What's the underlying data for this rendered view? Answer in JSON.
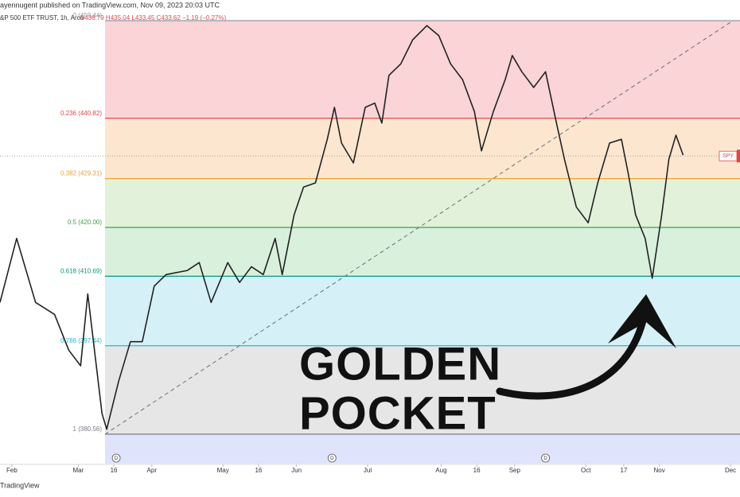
{
  "chart_data": {
    "type": "line",
    "header": "ayennugent published on TradingView.com, Nov 09, 2023 20:03 UTC",
    "symbol": "&P 500 ETF TRUST, 1h, Arca",
    "ohlc": "O436.79 H435.04 L433.45 C433.62 −1.19 (−0.27%)",
    "annotation": [
      "GOLDEN",
      "POCKET"
    ],
    "footer": "TradingView",
    "price_label": "SPY",
    "last_price": 433.62,
    "xlim": [
      27,
      339
    ],
    "ylim": [
      374.95,
      463.38
    ],
    "xticks": [
      {
        "value": 32,
        "label": "Feb"
      },
      {
        "value": 60,
        "label": "Mar"
      },
      {
        "value": 75,
        "label": "16"
      },
      {
        "value": 91,
        "label": "Apr"
      },
      {
        "value": 121,
        "label": "May"
      },
      {
        "value": 136,
        "label": "16"
      },
      {
        "value": 152,
        "label": "Jun"
      },
      {
        "value": 182,
        "label": "Jul"
      },
      {
        "value": 213,
        "label": "Aug"
      },
      {
        "value": 228,
        "label": "16"
      },
      {
        "value": 244,
        "label": "Sep"
      },
      {
        "value": 274,
        "label": "Oct"
      },
      {
        "value": 290,
        "label": "17"
      },
      {
        "value": 305,
        "label": "Nov"
      },
      {
        "value": 335,
        "label": "Dec"
      }
    ],
    "event_markers": [
      {
        "x": 76,
        "label": "D"
      },
      {
        "x": 167,
        "label": "D"
      },
      {
        "x": 257,
        "label": "D"
      }
    ],
    "fib_levels": [
      {
        "label": "0 (459.44)",
        "price": 459.44,
        "color": "#9598a1",
        "fill": "#fad4d7"
      },
      {
        "label": "0.236 (440.82)",
        "price": 440.82,
        "color": "#e0474c",
        "fill": "#fde6cf"
      },
      {
        "label": "0.382 (429.31)",
        "price": 429.31,
        "color": "#f0a030",
        "fill": "#e2f1da"
      },
      {
        "label": "0.5 (420.00)",
        "price": 420.0,
        "color": "#43a047",
        "fill": "#d9f0dd"
      },
      {
        "label": "0.618 (410.69)",
        "price": 410.69,
        "color": "#089981",
        "fill": "#d5f0f7"
      },
      {
        "label": "0.786 (397.44)",
        "price": 397.44,
        "color": "#26b8d0",
        "fill": "#e6e6e6"
      },
      {
        "label": "1 (380.56)",
        "price": 380.56,
        "color": "#787b86",
        "fill": "#dfe3fb"
      }
    ],
    "trendline": {
      "x": [
        71.3,
        336
      ],
      "values": [
        380.56,
        459.44
      ]
    },
    "series": [
      {
        "name": "SPY",
        "color": "#222222",
        "x": [
          27,
          34,
          42,
          50,
          56,
          61,
          64,
          70,
          72,
          77,
          82,
          87,
          92,
          97,
          106,
          111,
          116,
          123,
          128,
          133,
          138,
          143,
          146,
          151,
          155,
          160,
          165,
          168,
          171,
          176,
          181,
          185,
          188,
          191,
          196,
          201,
          207,
          212,
          217,
          222,
          227,
          230,
          235,
          240,
          243,
          247,
          252,
          257,
          262,
          265,
          270,
          275,
          279,
          284,
          289,
          292,
          295,
          299,
          302,
          306,
          309,
          312,
          315
        ],
        "values": [
          405.7,
          417.9,
          405.7,
          403.4,
          396.6,
          393.6,
          407.3,
          384.5,
          381.5,
          390.6,
          398.2,
          398.2,
          408.8,
          411.0,
          411.8,
          413.3,
          405.7,
          413.3,
          409.5,
          412.5,
          411.0,
          417.9,
          411.0,
          422.4,
          427.7,
          428.5,
          436.8,
          442.9,
          436.1,
          432.3,
          442.9,
          443.7,
          439.9,
          449.0,
          451.2,
          455.8,
          458.5,
          456.6,
          451.2,
          448.2,
          442.1,
          434.6,
          442.1,
          448.2,
          452.8,
          449.7,
          446.7,
          449.7,
          439.1,
          433.0,
          423.9,
          420.9,
          428.5,
          436.1,
          436.8,
          430.0,
          422.4,
          417.9,
          410.3,
          422.4,
          433.0,
          437.6,
          433.8
        ]
      }
    ]
  }
}
